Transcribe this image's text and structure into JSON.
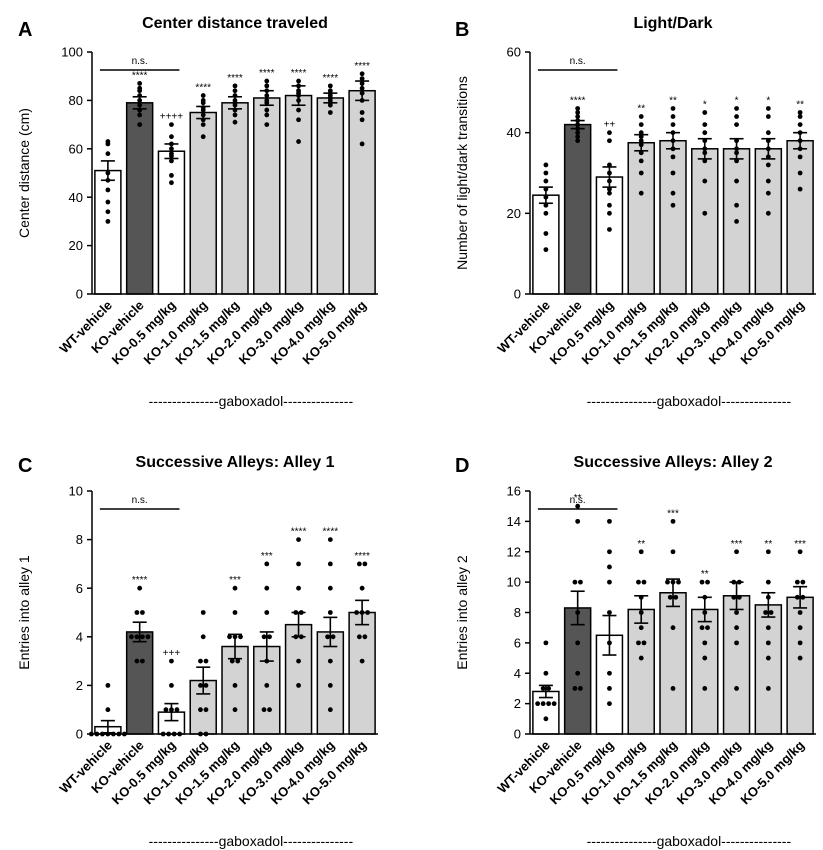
{
  "figure": {
    "x_group_label": "---------------gaboxadol---------------",
    "significance_ns": "n.s."
  },
  "chart_data": [
    {
      "panel_label": "A",
      "type": "bar",
      "title": "Center distance traveled",
      "ylabel": "Center distance  (cm)",
      "xlabel": "",
      "ylim": [
        0,
        100
      ],
      "yticks": [
        0,
        20,
        40,
        60,
        80,
        100
      ],
      "categories": [
        "WT-vehicle",
        "KO-vehicle",
        "KO-0.5 mg/kg",
        "KO-1.0 mg/kg",
        "KO-1.5 mg/kg",
        "KO-2.0 mg/kg",
        "KO-3.0 mg/kg",
        "KO-4.0 mg/kg",
        "KO-5.0 mg/kg"
      ],
      "values": [
        51,
        79,
        59,
        75,
        79,
        81,
        82,
        81,
        84
      ],
      "sem": [
        4,
        2.5,
        3,
        2.5,
        2.5,
        3,
        4,
        2,
        4
      ],
      "fill": [
        "#ffffff",
        "#555555",
        "#ffffff",
        "#d3d3d3",
        "#d3d3d3",
        "#d3d3d3",
        "#d3d3d3",
        "#d3d3d3",
        "#d3d3d3"
      ],
      "annotations": [
        "",
        "****",
        "++++",
        "****",
        "****",
        "****",
        "****",
        "****",
        "****"
      ],
      "ns_bracket": [
        0,
        2
      ],
      "points": [
        [
          62,
          63,
          58,
          50,
          47,
          43,
          38,
          34,
          30
        ],
        [
          87,
          85,
          84,
          82,
          80,
          78,
          76,
          74,
          70
        ],
        [
          70,
          65,
          62,
          60,
          58,
          57,
          55,
          49,
          46
        ],
        [
          82,
          80,
          79,
          77,
          76,
          74,
          72,
          70,
          65
        ],
        [
          86,
          84,
          82,
          80,
          79,
          78,
          76,
          74,
          71
        ],
        [
          88,
          86,
          84,
          82,
          80,
          79,
          76,
          74,
          70
        ],
        [
          88,
          86,
          84,
          83,
          82,
          80,
          76,
          72,
          63
        ],
        [
          86,
          84,
          83,
          82,
          81,
          80,
          79,
          78,
          75
        ],
        [
          91,
          89,
          87,
          85,
          83,
          80,
          75,
          72,
          62
        ]
      ],
      "legend": "none"
    },
    {
      "panel_label": "B",
      "type": "bar",
      "title": "Light/Dark",
      "ylabel": "Number of light/dark transitions",
      "xlabel": "",
      "ylim": [
        0,
        60
      ],
      "yticks": [
        0,
        20,
        40,
        60
      ],
      "categories": [
        "WT-vehicle",
        "KO-vehicle",
        "KO-0.5 mg/kg",
        "KO-1.0 mg/kg",
        "KO-1.5 mg/kg",
        "KO-2.0 mg/kg",
        "KO-3.0 mg/kg",
        "KO-4.0 mg/kg",
        "KO-5.0 mg/kg"
      ],
      "values": [
        24.5,
        42,
        29,
        37.5,
        38,
        36,
        36,
        36,
        38
      ],
      "sem": [
        2,
        1,
        2.5,
        2,
        2,
        2.5,
        2.5,
        2.5,
        2
      ],
      "fill": [
        "#ffffff",
        "#555555",
        "#ffffff",
        "#d3d3d3",
        "#d3d3d3",
        "#d3d3d3",
        "#d3d3d3",
        "#d3d3d3",
        "#d3d3d3"
      ],
      "annotations": [
        "",
        "****",
        "++",
        "**",
        "**",
        "*",
        "*",
        "*",
        "**"
      ],
      "ns_bracket": [
        0,
        2
      ],
      "points": [
        [
          32,
          30,
          28,
          26,
          24,
          22,
          20,
          15,
          11
        ],
        [
          46,
          45,
          44,
          43,
          42,
          41,
          40,
          39,
          38
        ],
        [
          40,
          38,
          32,
          30,
          28,
          26,
          25,
          22,
          20,
          16
        ],
        [
          44,
          42,
          40,
          39,
          38,
          37,
          35,
          33,
          30,
          25
        ],
        [
          46,
          44,
          42,
          40,
          38,
          36,
          34,
          30,
          25,
          22
        ],
        [
          45,
          42,
          40,
          38,
          36,
          35,
          33,
          28,
          20
        ],
        [
          46,
          44,
          42,
          38,
          36,
          35,
          33,
          28,
          22,
          18
        ],
        [
          46,
          44,
          40,
          38,
          36,
          34,
          32,
          28,
          25,
          20
        ],
        [
          45,
          44,
          42,
          40,
          38,
          36,
          34,
          30,
          26
        ]
      ],
      "legend": "none"
    },
    {
      "panel_label": "C",
      "type": "bar",
      "title": "Successive Alleys: Alley 1",
      "ylabel": "Entries into alley 1",
      "xlabel": "",
      "ylim": [
        0,
        10
      ],
      "yticks": [
        0,
        2,
        4,
        6,
        8,
        10
      ],
      "categories": [
        "WT-vehicle",
        "KO-vehicle",
        "KO-0.5 mg/kg",
        "KO-1.0 mg/kg",
        "KO-1.5 mg/kg",
        "KO-2.0 mg/kg",
        "KO-3.0 mg/kg",
        "KO-4.0 mg/kg",
        "KO-5.0 mg/kg"
      ],
      "values": [
        0.3,
        4.2,
        0.9,
        2.2,
        3.6,
        3.6,
        4.5,
        4.2,
        5.0
      ],
      "sem": [
        0.25,
        0.4,
        0.35,
        0.55,
        0.5,
        0.6,
        0.5,
        0.6,
        0.5
      ],
      "fill": [
        "#ffffff",
        "#555555",
        "#ffffff",
        "#d3d3d3",
        "#d3d3d3",
        "#d3d3d3",
        "#d3d3d3",
        "#d3d3d3",
        "#d3d3d3"
      ],
      "annotations": [
        "",
        "****",
        "+++",
        "",
        "***",
        "***",
        "****",
        "****",
        "****"
      ],
      "ns_bracket": [
        0,
        2
      ],
      "points": [
        [
          2,
          1,
          0,
          0,
          0,
          0,
          0,
          0,
          0
        ],
        [
          6,
          5,
          5,
          4,
          4,
          4,
          4,
          3,
          3
        ],
        [
          3,
          2,
          1,
          1,
          1,
          0,
          0,
          0,
          0
        ],
        [
          5,
          4,
          3,
          3,
          2,
          2,
          1,
          1,
          0,
          0
        ],
        [
          6,
          5,
          4,
          4,
          4,
          3,
          3,
          2,
          1
        ],
        [
          7,
          6,
          5,
          4,
          4,
          3,
          2,
          1,
          1
        ],
        [
          8,
          7,
          6,
          5,
          5,
          4,
          4,
          3,
          2
        ],
        [
          8,
          7,
          6,
          5,
          4,
          4,
          3,
          2,
          1
        ],
        [
          7,
          7,
          6,
          5,
          5,
          5,
          4,
          4,
          3
        ]
      ],
      "legend": "none"
    },
    {
      "panel_label": "D",
      "type": "bar",
      "title": "Successive Alleys: Alley 2",
      "ylabel": "Entries into alley 2",
      "xlabel": "",
      "ylim": [
        0,
        16
      ],
      "yticks": [
        0,
        2,
        4,
        6,
        8,
        10,
        12,
        14,
        16
      ],
      "categories": [
        "WT-vehicle",
        "KO-vehicle",
        "KO-0.5 mg/kg",
        "KO-1.0 mg/kg",
        "KO-1.5 mg/kg",
        "KO-2.0 mg/kg",
        "KO-3.0 mg/kg",
        "KO-4.0 mg/kg",
        "KO-5.0 mg/kg"
      ],
      "values": [
        2.8,
        8.3,
        6.5,
        8.2,
        9.3,
        8.2,
        9.1,
        8.5,
        9.0
      ],
      "sem": [
        0.4,
        1.1,
        1.3,
        0.9,
        0.9,
        0.8,
        0.9,
        0.8,
        0.7
      ],
      "fill": [
        "#ffffff",
        "#555555",
        "#ffffff",
        "#d3d3d3",
        "#d3d3d3",
        "#d3d3d3",
        "#d3d3d3",
        "#d3d3d3",
        "#d3d3d3"
      ],
      "annotations": [
        "",
        "**",
        "",
        "**",
        "***",
        "**",
        "***",
        "**",
        "***"
      ],
      "ns_bracket": [
        0,
        2
      ],
      "points": [
        [
          6,
          4,
          3,
          3,
          2,
          2,
          2,
          2,
          1
        ],
        [
          15,
          14,
          10,
          10,
          8,
          6,
          4,
          3,
          3
        ],
        [
          14,
          12,
          11,
          10,
          8,
          6,
          4,
          3,
          2
        ],
        [
          12,
          10,
          10,
          9,
          8,
          7,
          6,
          6,
          5
        ],
        [
          14,
          12,
          10,
          10,
          10,
          9,
          9,
          7,
          3
        ],
        [
          10,
          10,
          9,
          8,
          7,
          7,
          6,
          5,
          3
        ],
        [
          12,
          10,
          10,
          9,
          9,
          8,
          7,
          6,
          3
        ],
        [
          12,
          10,
          9,
          8,
          8,
          7,
          6,
          5,
          3
        ],
        [
          12,
          10,
          10,
          9,
          9,
          8,
          7,
          6,
          5
        ]
      ],
      "legend": "none"
    }
  ]
}
